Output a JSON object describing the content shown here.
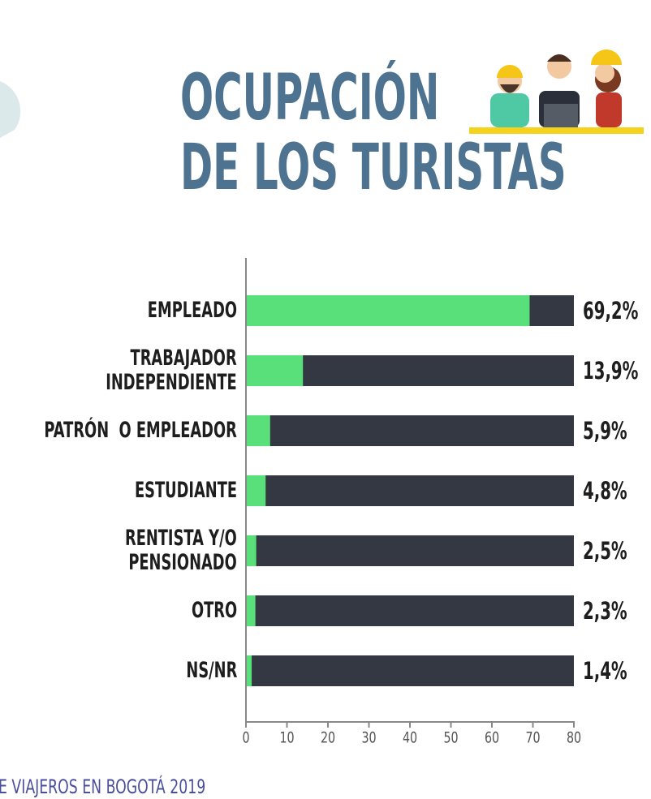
{
  "chart_data": {
    "type": "bar",
    "orientation": "horizontal",
    "title": "OCUPACIÓN\nDE LOS TURISTAS",
    "categories": [
      "EMPLEADO",
      "TRABAJADOR\nINDEPENDIENTE",
      "PATRÓN  O EMPLEADOR",
      "ESTUDIANTE",
      "RENTISTA Y/O\nPENSIONADO",
      "OTRO",
      "NS/NR"
    ],
    "values": [
      69.2,
      13.9,
      5.9,
      4.8,
      2.5,
      2.3,
      1.4
    ],
    "value_labels": [
      "69,2%",
      "13,9%",
      "5,9%",
      "4,8%",
      "2,5%",
      "2,3%",
      "1,4%"
    ],
    "color": "#5ae07a",
    "track_color": "#343842",
    "xlim": [
      0,
      80
    ],
    "xticks": [
      0,
      10,
      20,
      30,
      40,
      50,
      60,
      70,
      80
    ],
    "footer": "E VIAJEROS EN BOGOTÁ 2019"
  }
}
